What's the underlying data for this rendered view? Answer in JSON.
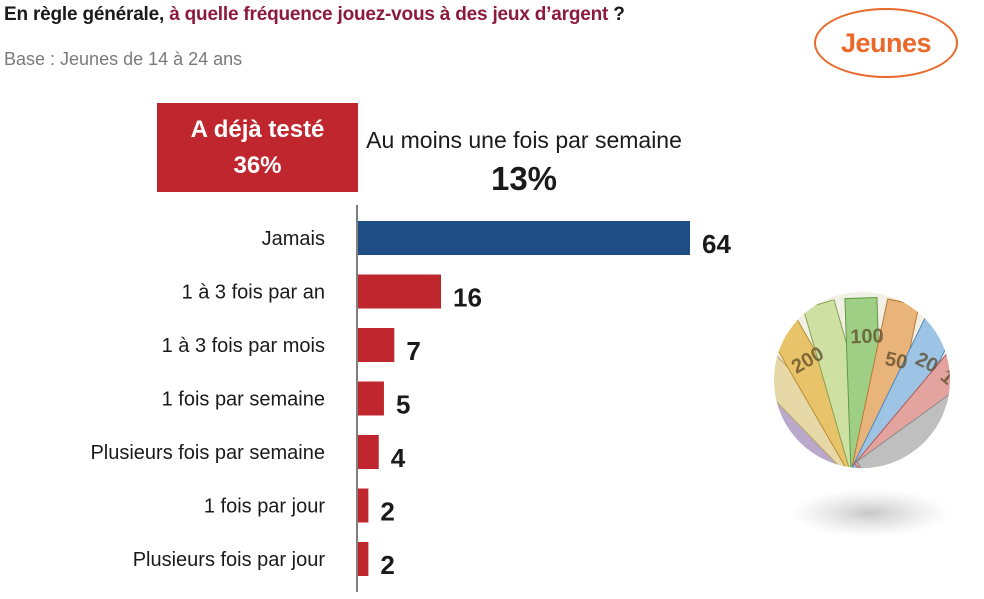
{
  "header": {
    "title_lead": "En règle générale,",
    "title_highlight": "à quelle fréquence jouez-vous à des jeux d’argent",
    "title_end": " ?",
    "subtitle": "Base : Jeunes de 14 à 24 ans",
    "badge": "Jeunes"
  },
  "callouts": {
    "already_label": "A déjà testé",
    "already_value": "36%",
    "weekly_label": "Au moins une fois par semaine",
    "weekly_value": "13%"
  },
  "colors": {
    "primary_bar": "#1f4e85",
    "secondary_bar": "#c0262e",
    "title_accent": "#8c1a3c",
    "badge": "#e8692a"
  },
  "chart_data": {
    "type": "bar",
    "orientation": "horizontal",
    "categories": [
      "Jamais",
      "1 à 3 fois par an",
      "1 à 3 fois par mois",
      "1 fois par semaine",
      "Plusieurs fois par semaine",
      "1 fois par jour",
      "Plusieurs fois par jour"
    ],
    "values": [
      64,
      16,
      7,
      5,
      4,
      2,
      2
    ],
    "unit": "%",
    "xlim": [
      0,
      70
    ],
    "grid": false
  },
  "illustration": {
    "icon": "euro-banknotes-icon"
  }
}
